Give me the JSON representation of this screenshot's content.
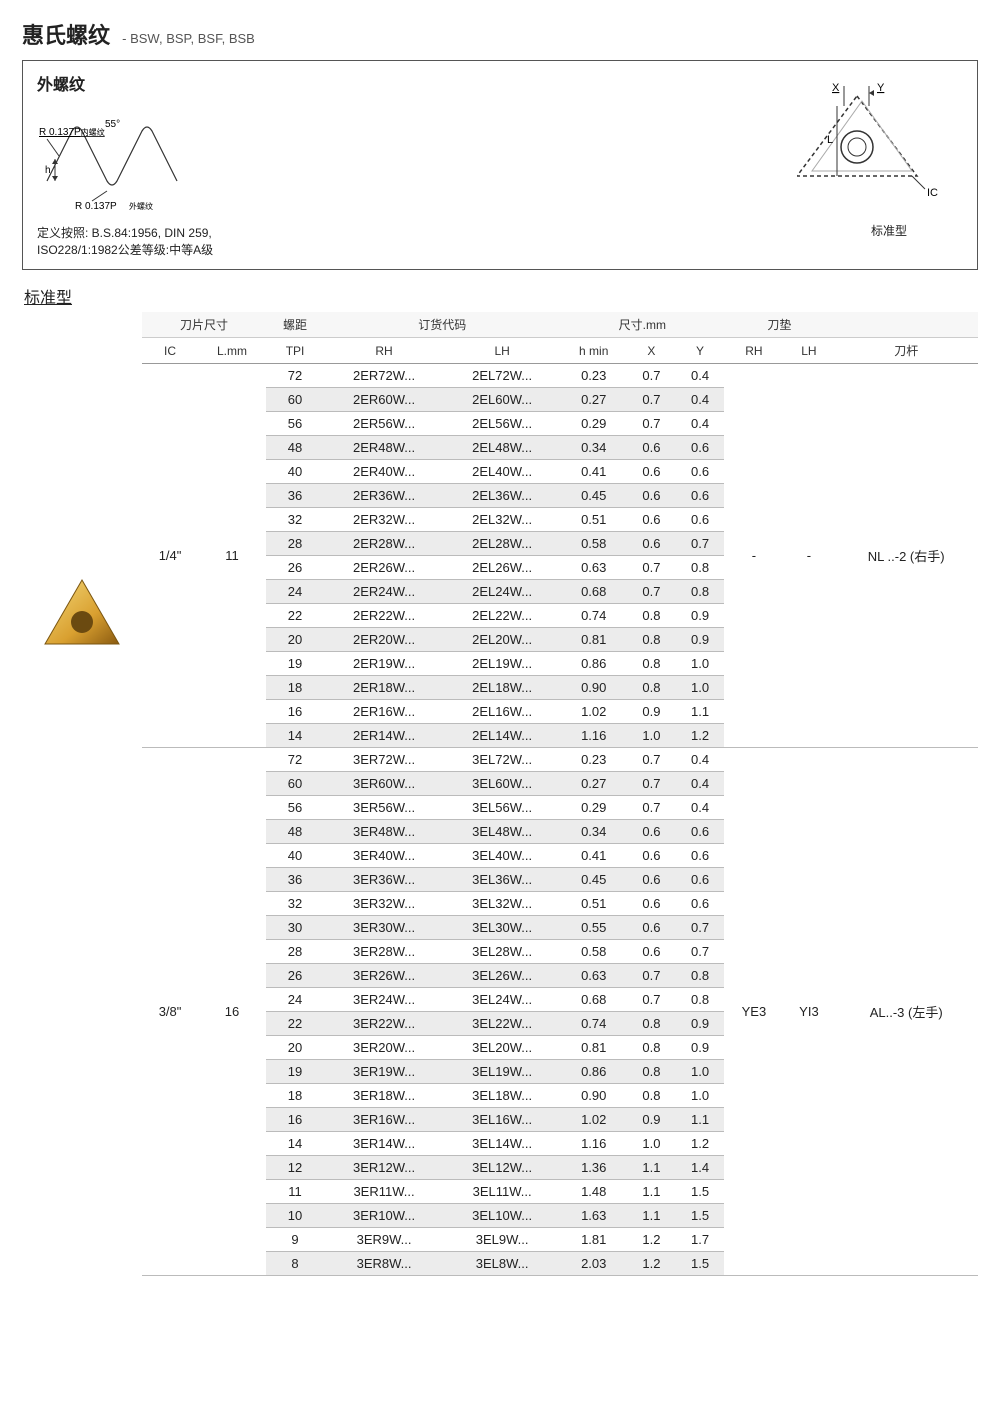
{
  "title": "惠氏螺纹",
  "subtitle": "- BSW, BSP, BSF, BSB",
  "header": {
    "heading": "外螺纹",
    "left_diag": {
      "r_in": "R 0.137P",
      "r_in_sub": "内螺纹",
      "angle": "55°",
      "h": "h",
      "r_out": "R 0.137P",
      "r_out_sub": "外螺纹"
    },
    "right_diag": {
      "X": "X",
      "Y": "Y",
      "L": "L",
      "IC": "IC",
      "caption": "标准型"
    },
    "defn1": "定义按照: B.S.84:1956, DIN 259,",
    "defn2": "ISO228/1:1982公差等级:中等A级"
  },
  "section_label": "标准型",
  "columns": {
    "group_insert": "刀片尺寸",
    "group_pitch": "螺距",
    "group_code": "订货代码",
    "group_dim": "尺寸.mm",
    "group_shim": "刀垫",
    "IC": "IC",
    "Lmm": "L.mm",
    "TPI": "TPI",
    "RH": "RH",
    "LH": "LH",
    "hmin": "h min",
    "X": "X",
    "Y": "Y",
    "shimRH": "RH",
    "shimLH": "LH",
    "bar": "刀杆"
  },
  "groups": [
    {
      "IC": "1/4\"",
      "Lmm": "11",
      "shimRH": "-",
      "shimLH": "-",
      "bar": "NL ..-2 (右手)",
      "rows": [
        {
          "tpi": "72",
          "rh": "2ER72W...",
          "lh": "2EL72W...",
          "h": "0.23",
          "x": "0.7",
          "y": "0.4"
        },
        {
          "tpi": "60",
          "rh": "2ER60W...",
          "lh": "2EL60W...",
          "h": "0.27",
          "x": "0.7",
          "y": "0.4"
        },
        {
          "tpi": "56",
          "rh": "2ER56W...",
          "lh": "2EL56W...",
          "h": "0.29",
          "x": "0.7",
          "y": "0.4"
        },
        {
          "tpi": "48",
          "rh": "2ER48W...",
          "lh": "2EL48W...",
          "h": "0.34",
          "x": "0.6",
          "y": "0.6"
        },
        {
          "tpi": "40",
          "rh": "2ER40W...",
          "lh": "2EL40W...",
          "h": "0.41",
          "x": "0.6",
          "y": "0.6"
        },
        {
          "tpi": "36",
          "rh": "2ER36W...",
          "lh": "2EL36W...",
          "h": "0.45",
          "x": "0.6",
          "y": "0.6"
        },
        {
          "tpi": "32",
          "rh": "2ER32W...",
          "lh": "2EL32W...",
          "h": "0.51",
          "x": "0.6",
          "y": "0.6"
        },
        {
          "tpi": "28",
          "rh": "2ER28W...",
          "lh": "2EL28W...",
          "h": "0.58",
          "x": "0.6",
          "y": "0.7"
        },
        {
          "tpi": "26",
          "rh": "2ER26W...",
          "lh": "2EL26W...",
          "h": "0.63",
          "x": "0.7",
          "y": "0.8"
        },
        {
          "tpi": "24",
          "rh": "2ER24W...",
          "lh": "2EL24W...",
          "h": "0.68",
          "x": "0.7",
          "y": "0.8"
        },
        {
          "tpi": "22",
          "rh": "2ER22W...",
          "lh": "2EL22W...",
          "h": "0.74",
          "x": "0.8",
          "y": "0.9"
        },
        {
          "tpi": "20",
          "rh": "2ER20W...",
          "lh": "2EL20W...",
          "h": "0.81",
          "x": "0.8",
          "y": "0.9"
        },
        {
          "tpi": "19",
          "rh": "2ER19W...",
          "lh": "2EL19W...",
          "h": "0.86",
          "x": "0.8",
          "y": "1.0"
        },
        {
          "tpi": "18",
          "rh": "2ER18W...",
          "lh": "2EL18W...",
          "h": "0.90",
          "x": "0.8",
          "y": "1.0"
        },
        {
          "tpi": "16",
          "rh": "2ER16W...",
          "lh": "2EL16W...",
          "h": "1.02",
          "x": "0.9",
          "y": "1.1"
        },
        {
          "tpi": "14",
          "rh": "2ER14W...",
          "lh": "2EL14W...",
          "h": "1.16",
          "x": "1.0",
          "y": "1.2"
        }
      ]
    },
    {
      "IC": "3/8\"",
      "Lmm": "16",
      "shimRH": "YE3",
      "shimLH": "YI3",
      "bar": "AL..-3 (左手)",
      "rows": [
        {
          "tpi": "72",
          "rh": "3ER72W...",
          "lh": "3EL72W...",
          "h": "0.23",
          "x": "0.7",
          "y": "0.4"
        },
        {
          "tpi": "60",
          "rh": "3ER60W...",
          "lh": "3EL60W...",
          "h": "0.27",
          "x": "0.7",
          "y": "0.4"
        },
        {
          "tpi": "56",
          "rh": "3ER56W...",
          "lh": "3EL56W...",
          "h": "0.29",
          "x": "0.7",
          "y": "0.4"
        },
        {
          "tpi": "48",
          "rh": "3ER48W...",
          "lh": "3EL48W...",
          "h": "0.34",
          "x": "0.6",
          "y": "0.6"
        },
        {
          "tpi": "40",
          "rh": "3ER40W...",
          "lh": "3EL40W...",
          "h": "0.41",
          "x": "0.6",
          "y": "0.6"
        },
        {
          "tpi": "36",
          "rh": "3ER36W...",
          "lh": "3EL36W...",
          "h": "0.45",
          "x": "0.6",
          "y": "0.6"
        },
        {
          "tpi": "32",
          "rh": "3ER32W...",
          "lh": "3EL32W...",
          "h": "0.51",
          "x": "0.6",
          "y": "0.6"
        },
        {
          "tpi": "30",
          "rh": "3ER30W...",
          "lh": "3EL30W...",
          "h": "0.55",
          "x": "0.6",
          "y": "0.7"
        },
        {
          "tpi": "28",
          "rh": "3ER28W...",
          "lh": "3EL28W...",
          "h": "0.58",
          "x": "0.6",
          "y": "0.7"
        },
        {
          "tpi": "26",
          "rh": "3ER26W...",
          "lh": "3EL26W...",
          "h": "0.63",
          "x": "0.7",
          "y": "0.8"
        },
        {
          "tpi": "24",
          "rh": "3ER24W...",
          "lh": "3EL24W...",
          "h": "0.68",
          "x": "0.7",
          "y": "0.8"
        },
        {
          "tpi": "22",
          "rh": "3ER22W...",
          "lh": "3EL22W...",
          "h": "0.74",
          "x": "0.8",
          "y": "0.9"
        },
        {
          "tpi": "20",
          "rh": "3ER20W...",
          "lh": "3EL20W...",
          "h": "0.81",
          "x": "0.8",
          "y": "0.9"
        },
        {
          "tpi": "19",
          "rh": "3ER19W...",
          "lh": "3EL19W...",
          "h": "0.86",
          "x": "0.8",
          "y": "1.0"
        },
        {
          "tpi": "18",
          "rh": "3ER18W...",
          "lh": "3EL18W...",
          "h": "0.90",
          "x": "0.8",
          "y": "1.0"
        },
        {
          "tpi": "16",
          "rh": "3ER16W...",
          "lh": "3EL16W...",
          "h": "1.02",
          "x": "0.9",
          "y": "1.1"
        },
        {
          "tpi": "14",
          "rh": "3ER14W...",
          "lh": "3EL14W...",
          "h": "1.16",
          "x": "1.0",
          "y": "1.2"
        },
        {
          "tpi": "12",
          "rh": "3ER12W...",
          "lh": "3EL12W...",
          "h": "1.36",
          "x": "1.1",
          "y": "1.4"
        },
        {
          "tpi": "11",
          "rh": "3ER11W...",
          "lh": "3EL11W...",
          "h": "1.48",
          "x": "1.1",
          "y": "1.5"
        },
        {
          "tpi": "10",
          "rh": "3ER10W...",
          "lh": "3EL10W...",
          "h": "1.63",
          "x": "1.1",
          "y": "1.5"
        },
        {
          "tpi": "9",
          "rh": "3ER9W...",
          "lh": "3EL9W...",
          "h": "1.81",
          "x": "1.2",
          "y": "1.7"
        },
        {
          "tpi": "8",
          "rh": "3ER8W...",
          "lh": "3EL8W...",
          "h": "2.03",
          "x": "1.2",
          "y": "1.5"
        }
      ]
    }
  ],
  "colors": {
    "alt_bg": "#ececec",
    "border": "#bbbbbb"
  }
}
